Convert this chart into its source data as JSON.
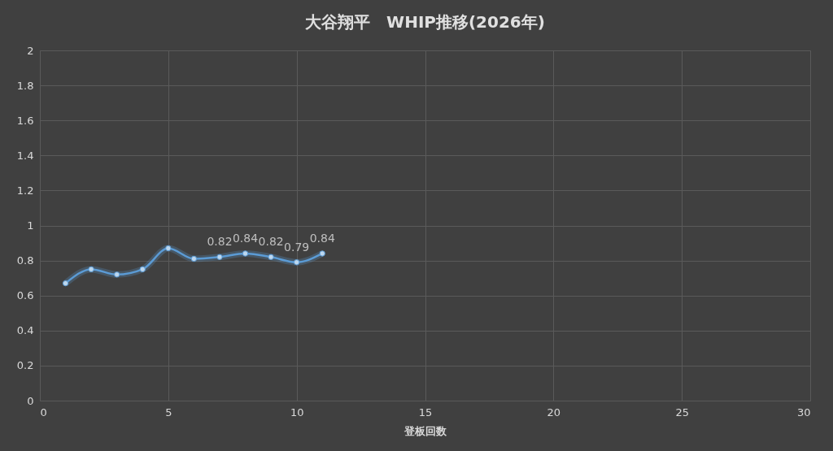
{
  "chart_data": {
    "type": "line",
    "title": "大谷翔平　WHIP推移(2026年)",
    "xlabel": "登板回数",
    "x": [
      1,
      2,
      3,
      4,
      5,
      6,
      7,
      8,
      9,
      10,
      11
    ],
    "series": [
      {
        "color": "#5b9bd5",
        "values": [
          0.67,
          0.75,
          0.72,
          0.75,
          0.87,
          0.81,
          0.82,
          0.84,
          0.82,
          0.79,
          0.84
        ],
        "value_labels": [
          null,
          null,
          null,
          null,
          null,
          null,
          "0.82",
          "0.84",
          "0.82",
          "0.79",
          "0.84"
        ]
      }
    ],
    "xlim": [
      0,
      30
    ],
    "xticks": [
      0,
      5,
      10,
      15,
      20,
      25,
      30
    ],
    "ylim": [
      0,
      2
    ],
    "yticks": [
      0,
      0.2,
      0.4,
      0.6,
      0.8,
      1,
      1.2,
      1.4,
      1.6,
      1.8,
      2
    ],
    "grid": true,
    "marker": "circle",
    "line_style": "solid"
  }
}
